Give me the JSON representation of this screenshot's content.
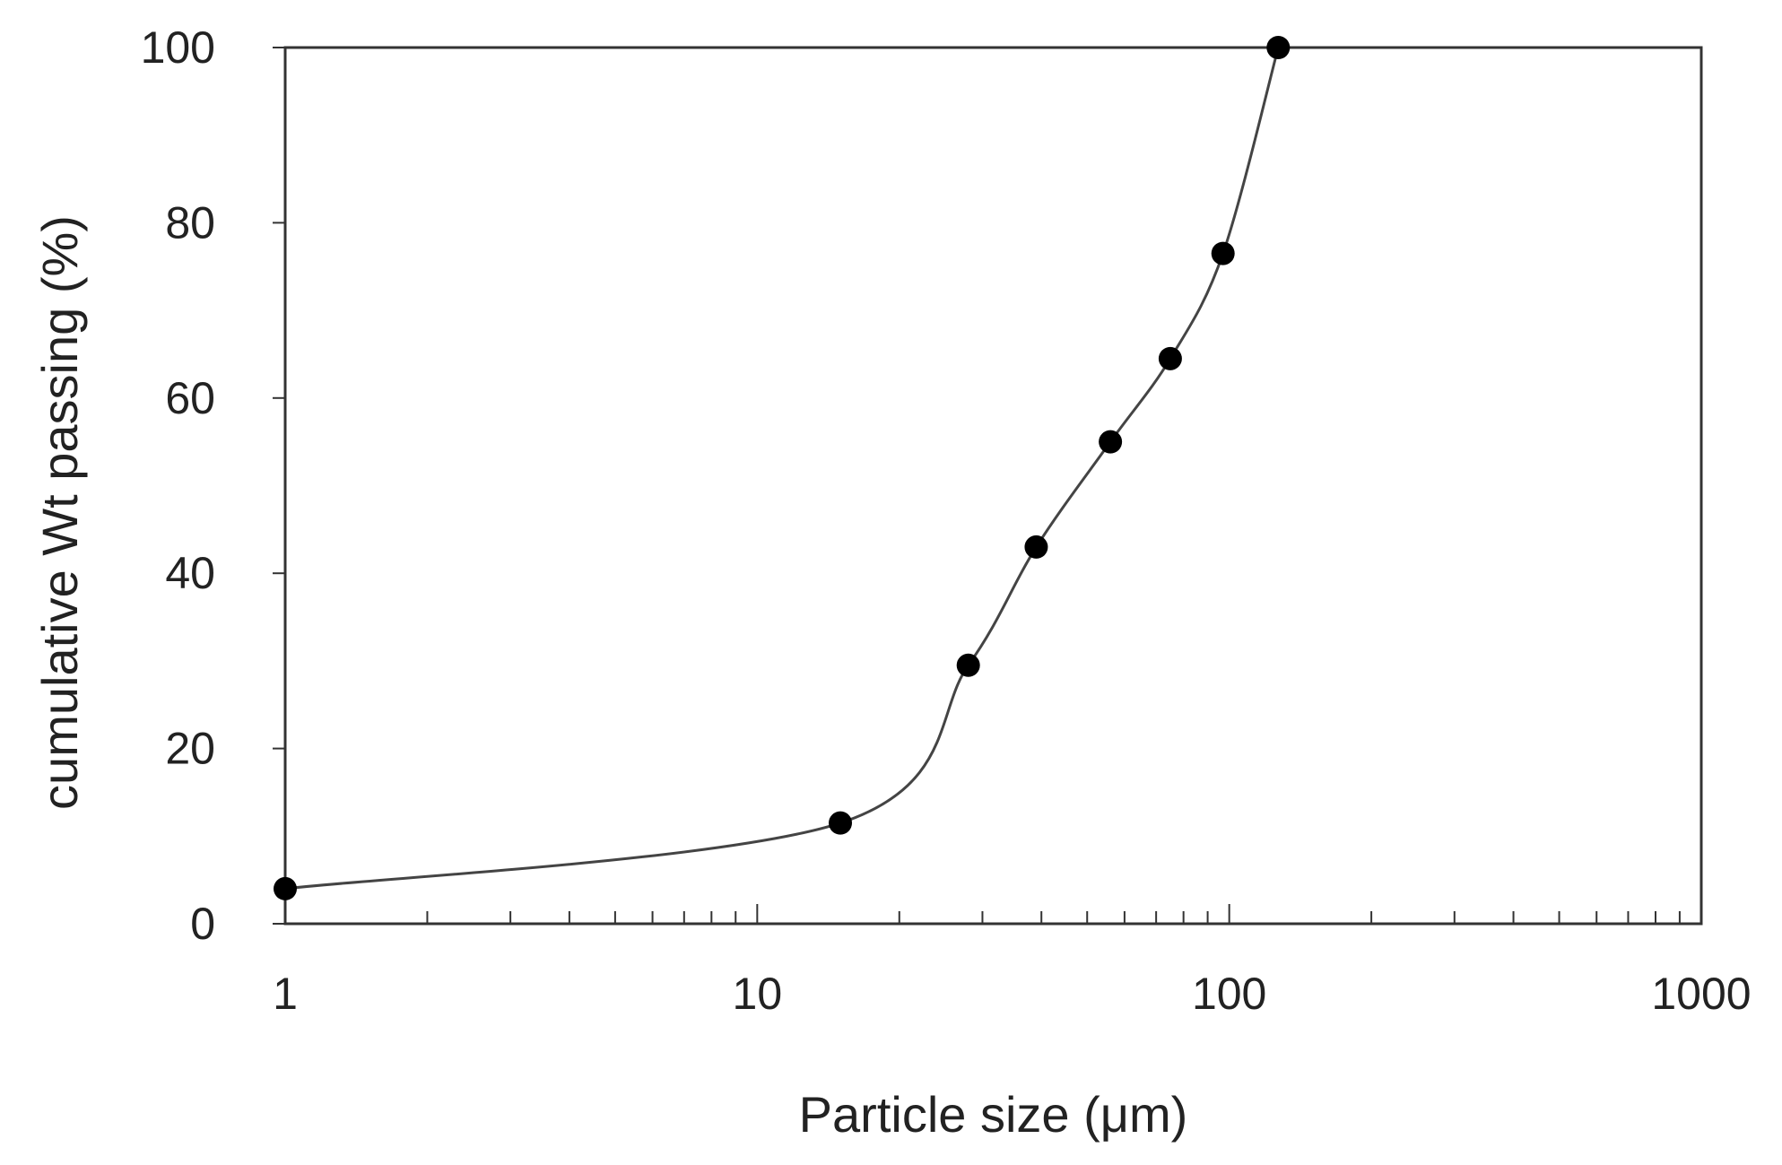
{
  "chart_data": {
    "type": "scatter",
    "title": "",
    "xlabel": "Particle size (μm)",
    "ylabel": "cumulative Wt passing (%)",
    "x_scale": "log",
    "xlim": [
      1,
      1000
    ],
    "ylim": [
      0,
      100
    ],
    "x_ticks": [
      "1",
      "10",
      "100",
      "1000"
    ],
    "y_ticks": [
      "0",
      "20",
      "40",
      "60",
      "80",
      "100"
    ],
    "grid": false,
    "legend": "none",
    "smooth_line": true,
    "marker_color": "#000000",
    "line_color": "#444444",
    "series": [
      {
        "x": [
          1,
          15,
          28,
          39,
          56,
          75,
          97,
          127
        ],
        "y": [
          4,
          11.5,
          29.5,
          43,
          55,
          64.5,
          76.5,
          100
        ]
      }
    ]
  }
}
